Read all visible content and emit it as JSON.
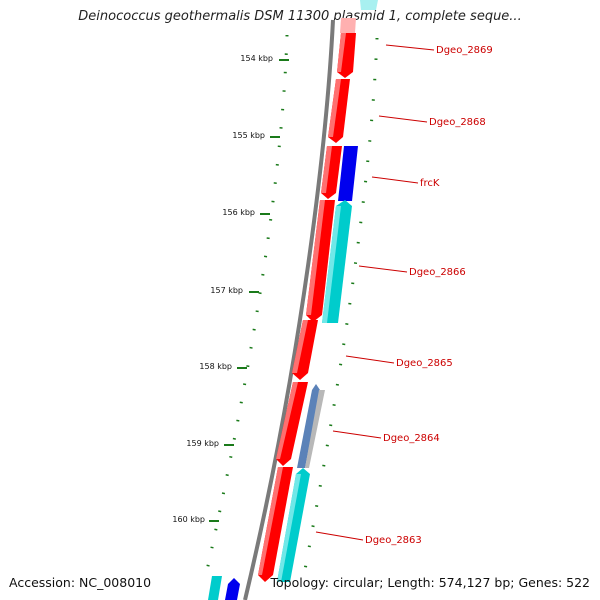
{
  "title": "Deinococcus geothermalis DSM 11300 plasmid 1, complete seque...",
  "accession_text": "Accession: NC_008010",
  "summary_text": "Topology: circular; Length: 574,127 bp; Genes: 522",
  "colors": {
    "backbone": "#7a7a7a",
    "forward_gene": "#ff0000",
    "reverse_gene_cyan": "#00cccc",
    "reverse_gene_blue": "#0000ee",
    "reverse_gene_slate": "#5b82b8",
    "reverse_gene_gray": "#b8b8b8",
    "tick": "#1a7a1a",
    "label": "#cc0000"
  },
  "ticks": [
    {
      "label": "154 kbp"
    },
    {
      "label": "155 kbp"
    },
    {
      "label": "156 kbp"
    },
    {
      "label": "157 kbp"
    },
    {
      "label": "158 kbp"
    },
    {
      "label": "159 kbp"
    },
    {
      "label": "160 kbp"
    }
  ],
  "genes": [
    {
      "label": "Dgeo_2869",
      "strand": "forward",
      "color": "forward_gene"
    },
    {
      "label": "Dgeo_2868",
      "strand": "forward",
      "color": "forward_gene"
    },
    {
      "label": "frcK",
      "strand": "reverse",
      "color": "reverse_gene_blue"
    },
    {
      "label": "Dgeo_2866",
      "strand": "reverse",
      "color": "reverse_gene_cyan"
    },
    {
      "label": "Dgeo_2865",
      "strand": "forward",
      "color": "forward_gene"
    },
    {
      "label": "Dgeo_2864",
      "strand": "reverse",
      "color": "reverse_gene_slate"
    },
    {
      "label": "Dgeo_2863",
      "strand": "reverse",
      "color": "reverse_gene_cyan"
    }
  ]
}
